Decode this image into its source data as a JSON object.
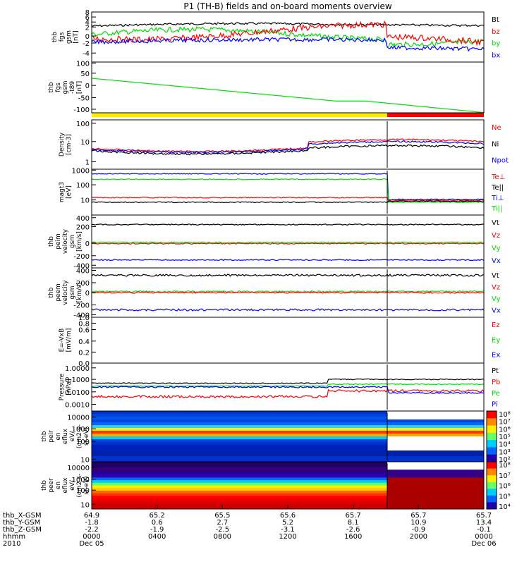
{
  "title": "P1 (TH-B) fields and on-board moments overview",
  "colors": {
    "black": "#000000",
    "red": "#ff0000",
    "green": "#00dd00",
    "blue": "#0000ff",
    "yellow": "#ffee00"
  },
  "panels": [
    {
      "id": "fgs",
      "ylabel": [
        "thb",
        "fgs",
        "gsm",
        "[nT]"
      ],
      "ticks": [
        {
          "v": "8",
          "y": -0.1
        },
        {
          "v": "6",
          "y": 0.1
        },
        {
          "v": "4",
          "y": 0.2
        },
        {
          "v": "2",
          "y": 0.3
        },
        {
          "v": "0",
          "y": 0.48
        },
        {
          "v": "-2",
          "y": 0.62
        },
        {
          "v": "-4",
          "y": 0.82
        }
      ],
      "legend": [
        {
          "t": "Bt",
          "c": "black"
        },
        {
          "t": "bz",
          "c": "red"
        },
        {
          "t": "by",
          "c": "green"
        },
        {
          "t": "bx",
          "c": "blue"
        }
      ]
    },
    {
      "id": "fgs_t89",
      "ylabel": [
        "thb",
        "fgs",
        "gsm",
        "-t89",
        "[nT]"
      ],
      "ticks": [
        {
          "v": "100",
          "y": 0.02
        },
        {
          "v": "50",
          "y": 0.22
        },
        {
          "v": "0",
          "y": 0.46
        },
        {
          "v": "-50",
          "y": 0.7
        },
        {
          "v": "-100",
          "y": 0.93
        }
      ],
      "legend": []
    },
    {
      "id": "density",
      "ylabel": [
        "Density",
        "[cm-3]"
      ],
      "ticks": [
        {
          "v": "100",
          "y": 0.07
        },
        {
          "v": "10",
          "y": 0.44
        },
        {
          "v": "1",
          "y": 0.85
        }
      ],
      "legend": [
        {
          "t": "Ne",
          "c": "red"
        },
        {
          "t": "Ni",
          "c": "black"
        },
        {
          "t": "Npot",
          "c": "blue"
        }
      ]
    },
    {
      "id": "temp",
      "ylabel": [
        "magt3",
        "[eV]"
      ],
      "ticks": [
        {
          "v": "1000",
          "y": 0.02
        },
        {
          "v": "100",
          "y": 0.34
        },
        {
          "v": "10",
          "y": 0.67
        }
      ],
      "legend": [
        {
          "t": "Te⊥",
          "c": "red"
        },
        {
          "t": "Te||",
          "c": "black"
        },
        {
          "t": "Ti⊥",
          "c": "blue"
        },
        {
          "t": "Ti||",
          "c": "green"
        }
      ]
    },
    {
      "id": "peim",
      "ylabel": [
        "thb",
        "peim",
        "velocity",
        "gsm",
        "[km/s]"
      ],
      "ticks": [
        {
          "v": "400",
          "y": 0.05
        },
        {
          "v": "200",
          "y": 0.22
        },
        {
          "v": "0",
          "y": 0.53
        },
        {
          "v": "-200",
          "y": 0.77
        },
        {
          "v": "-400",
          "y": 0.95
        }
      ],
      "legend": [
        {
          "t": "Vt",
          "c": "black"
        },
        {
          "t": "Vz",
          "c": "red"
        },
        {
          "t": "Vy",
          "c": "green"
        },
        {
          "t": "Vx",
          "c": "blue"
        }
      ]
    },
    {
      "id": "peem",
      "ylabel": [
        "thb",
        "peem",
        "velocity",
        "gsm",
        "[km/s]"
      ],
      "ticks": [
        {
          "v": "400",
          "y": 0.05
        },
        {
          "v": "200",
          "y": 0.3
        },
        {
          "v": "0",
          "y": 0.5
        },
        {
          "v": "-200",
          "y": 0.75
        },
        {
          "v": "-400",
          "y": 0.95
        }
      ],
      "legend": [
        {
          "t": "Vt",
          "c": "black"
        },
        {
          "t": "Vz",
          "c": "red"
        },
        {
          "t": "Vy",
          "c": "green"
        },
        {
          "t": "Vx",
          "c": "blue"
        }
      ]
    },
    {
      "id": "efield",
      "ylabel": [
        "E=-VxB",
        "[mV/m]"
      ],
      "ticks": [
        {
          "v": "1.0",
          "y": 0.0
        },
        {
          "v": "0.8",
          "y": 0.13
        },
        {
          "v": "0.6",
          "y": 0.27
        },
        {
          "v": "0.4",
          "y": 0.52
        },
        {
          "v": "0.2",
          "y": 0.76
        },
        {
          "v": "0.0",
          "y": 1.0
        }
      ],
      "legend": [
        {
          "t": "Ez",
          "c": "red"
        },
        {
          "t": "Ey",
          "c": "green"
        },
        {
          "t": "Ex",
          "c": "blue"
        }
      ]
    },
    {
      "id": "pressure",
      "ylabel": [
        "Pressure",
        "[nPa]"
      ],
      "ticks": [
        {
          "v": "1.0000",
          "y": 0.1
        },
        {
          "v": "0.1000",
          "y": 0.34
        },
        {
          "v": "0.0100",
          "y": 0.6
        },
        {
          "v": "0.0010",
          "y": 0.86
        }
      ],
      "legend": [
        {
          "t": "Pt",
          "c": "black"
        },
        {
          "t": "Pb",
          "c": "red"
        },
        {
          "t": "Pe",
          "c": "green"
        },
        {
          "t": "Pi",
          "c": "blue"
        }
      ]
    },
    {
      "id": "peir",
      "ylabel": [
        "thb",
        "peir",
        "en",
        "eflux",
        "eV/",
        "(cm2-s-",
        "sr-eV)"
      ],
      "ticks": [
        {
          "v": "10000",
          "y": 0.12
        },
        {
          "v": "1000",
          "y": 0.35
        },
        {
          "v": "100",
          "y": 0.6
        },
        {
          "v": "10",
          "y": 0.95
        }
      ],
      "legend": [],
      "colorbar": [
        "10⁸",
        "10⁷",
        "10⁶",
        "10⁵",
        "10⁴",
        "10³",
        "10²"
      ]
    },
    {
      "id": "peer",
      "ylabel": [
        "thb",
        "peer",
        "en",
        "eflux",
        "eV/",
        "(cm2-s-",
        "sr-eV)"
      ],
      "ticks": [
        {
          "v": "10000",
          "y": 0.12
        },
        {
          "v": "1000",
          "y": 0.37
        },
        {
          "v": "100",
          "y": 0.6
        },
        {
          "v": "10",
          "y": 0.9
        }
      ],
      "legend": [],
      "colorbar": [
        "10⁸",
        "10⁷",
        "10⁶",
        "10⁵",
        "10⁴"
      ]
    }
  ],
  "xaxis": {
    "row_labels": [
      "thb_X-GSM",
      "thb_Y-GSM",
      "thb_Z-GSM",
      "hhmm",
      "2010"
    ],
    "columns": [
      [
        "64.9",
        "-1.8",
        "-2.2",
        "0000",
        "Dec 05"
      ],
      [
        "65.2",
        "0.6",
        "-1.9",
        "0400",
        ""
      ],
      [
        "65.5",
        "2.7",
        "-2.5",
        "0800",
        ""
      ],
      [
        "65.6",
        "5.2",
        "-3.1",
        "1200",
        ""
      ],
      [
        "65.7",
        "8.1",
        "-2.6",
        "1600",
        ""
      ],
      [
        "65.7",
        "10.9",
        "-0.9",
        "2000",
        ""
      ],
      [
        "65.7",
        "13.4",
        "-0.1",
        "0000",
        "Dec 06"
      ]
    ]
  }
}
